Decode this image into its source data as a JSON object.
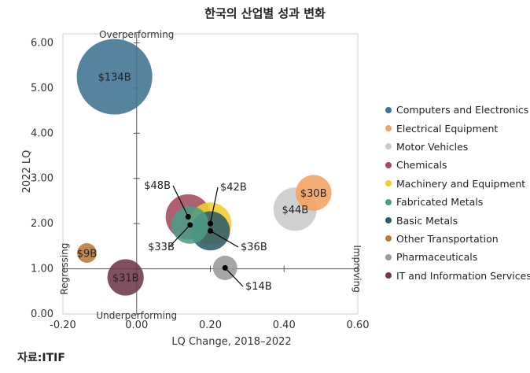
{
  "title": "한국의 산업별 성과 변화",
  "source": "자료:ITIF",
  "chart_data": {
    "type": "bubble",
    "title": "한국의 산업별 성과 변화",
    "xlabel": "LQ Change, 2018–2022",
    "ylabel": "2022 LQ",
    "xlim": [
      -0.2,
      0.6
    ],
    "ylim": [
      0,
      6.2
    ],
    "x_ticks": [
      "-0.20",
      "0.00",
      "0.20",
      "0.40",
      "0.60"
    ],
    "y_ticks": [
      "0.00",
      "1.00",
      "2.00",
      "3.00",
      "4.00",
      "5.00",
      "6.00"
    ],
    "grid": false,
    "legend_position": "right",
    "quadrant_labels": {
      "top": "Overperforming",
      "bottom": "Underperforming",
      "left": "Regressing",
      "right": "Improving"
    },
    "series": [
      {
        "name": "Computers and Electronics",
        "x": -0.06,
        "y": 5.25,
        "size": 134,
        "label": "$134B",
        "color": "#3f7391"
      },
      {
        "name": "Electrical Equipment",
        "x": 0.48,
        "y": 2.68,
        "size": 30,
        "label": "$30B",
        "color": "#f4a261"
      },
      {
        "name": "Motor Vehicles",
        "x": 0.43,
        "y": 2.32,
        "size": 44,
        "label": "$44B",
        "color": "#c9c9c9"
      },
      {
        "name": "Chemicals",
        "x": 0.14,
        "y": 2.15,
        "size": 48,
        "label": "$48B",
        "color": "#a34a5e"
      },
      {
        "name": "Machinery and Equipment",
        "x": 0.2,
        "y": 2.0,
        "size": 42,
        "label": "$42B",
        "color": "#f2cd2d"
      },
      {
        "name": "Fabricated Metals",
        "x": 0.145,
        "y": 1.97,
        "size": 33,
        "label": "$33B",
        "color": "#4c9c86"
      },
      {
        "name": "Basic Metals",
        "x": 0.2,
        "y": 1.84,
        "size": 36,
        "label": "$36B",
        "color": "#2e5b6b"
      },
      {
        "name": "Other Transportation",
        "x": -0.135,
        "y": 1.35,
        "size": 9,
        "label": "$9B",
        "color": "#b87a3e"
      },
      {
        "name": "Pharmaceuticals",
        "x": 0.24,
        "y": 1.02,
        "size": 14,
        "label": "$14B",
        "color": "#9a9a9a"
      },
      {
        "name": "IT and Information Services",
        "x": -0.03,
        "y": 0.81,
        "size": 31,
        "label": "$31B",
        "color": "#6e3848"
      }
    ]
  }
}
